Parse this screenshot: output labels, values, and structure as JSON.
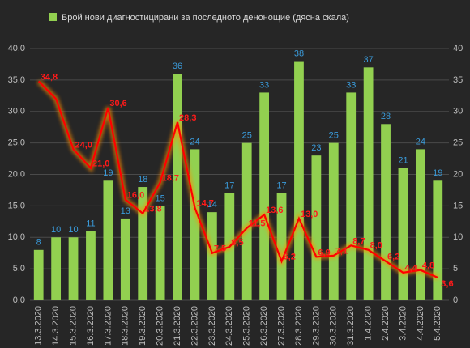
{
  "chart_data": {
    "type": "bar-line",
    "legend_label": "Брой нови диагностицирани за последното денонощие (дясна скала)",
    "categories": [
      "13.3.2020",
      "14.3.2020",
      "15.3.2020",
      "16.3.2020",
      "17.3.2020",
      "18.3.2020",
      "19.3.2020",
      "20.3.2020",
      "21.3.2020",
      "22.3.2020",
      "23.3.2020",
      "24.3.2020",
      "25.3.2020",
      "26.3.2020",
      "27.3.2020",
      "28.3.2020",
      "29.3.2020",
      "30.3.2020",
      "31.3.2020",
      "1.4.2020",
      "2.4.2020",
      "3.4.2020",
      "4.4.2020",
      "5.4.2020"
    ],
    "series": [
      {
        "type": "bar",
        "axis": "y2",
        "color": "#92d050",
        "label_color": "#3a9ad9",
        "values": [
          8,
          10,
          10,
          11,
          19,
          13,
          18,
          15,
          36,
          24,
          14,
          17,
          25,
          33,
          17,
          38,
          23,
          25,
          33,
          37,
          28,
          21,
          24,
          19
        ]
      },
      {
        "type": "line",
        "axis": "y",
        "color": "#ff0000",
        "label_color": "#ff1a1a",
        "values": [
          34.8,
          32.0,
          24.0,
          21.0,
          30.6,
          16.0,
          13.8,
          18.7,
          28.3,
          14.7,
          7.5,
          8.5,
          11.5,
          13.6,
          6.2,
          13.0,
          6.9,
          7.1,
          8.7,
          8.0,
          6.2,
          4.4,
          4.8,
          3.6
        ],
        "value_labels": [
          "34,8",
          null,
          "24,0",
          "21,0",
          "30,6",
          "16,0",
          "13,8",
          "18,7",
          "28,3",
          "14,7",
          "7,5",
          "8,5",
          "11,5",
          "13,6",
          "6,2",
          "13,0",
          "6,9",
          "7,1",
          "8,7",
          "8,0",
          "6,2",
          "4,4",
          "4,8",
          "3,6"
        ]
      }
    ],
    "ylim": [
      0,
      40
    ],
    "yticks": [
      {
        "value": 0,
        "label": "0,0"
      },
      {
        "value": 5,
        "label": "5,0"
      },
      {
        "value": 10,
        "label": "10,0"
      },
      {
        "value": 15,
        "label": "15,0"
      },
      {
        "value": 20,
        "label": "20,0"
      },
      {
        "value": 25,
        "label": "25,0"
      },
      {
        "value": 30,
        "label": "30,0"
      },
      {
        "value": 35,
        "label": "35,0"
      },
      {
        "value": 40,
        "label": "40,0"
      }
    ],
    "y2lim": [
      0,
      40
    ],
    "y2ticks": [
      0,
      5,
      10,
      15,
      20,
      25,
      30,
      35,
      40
    ],
    "grid": true
  }
}
